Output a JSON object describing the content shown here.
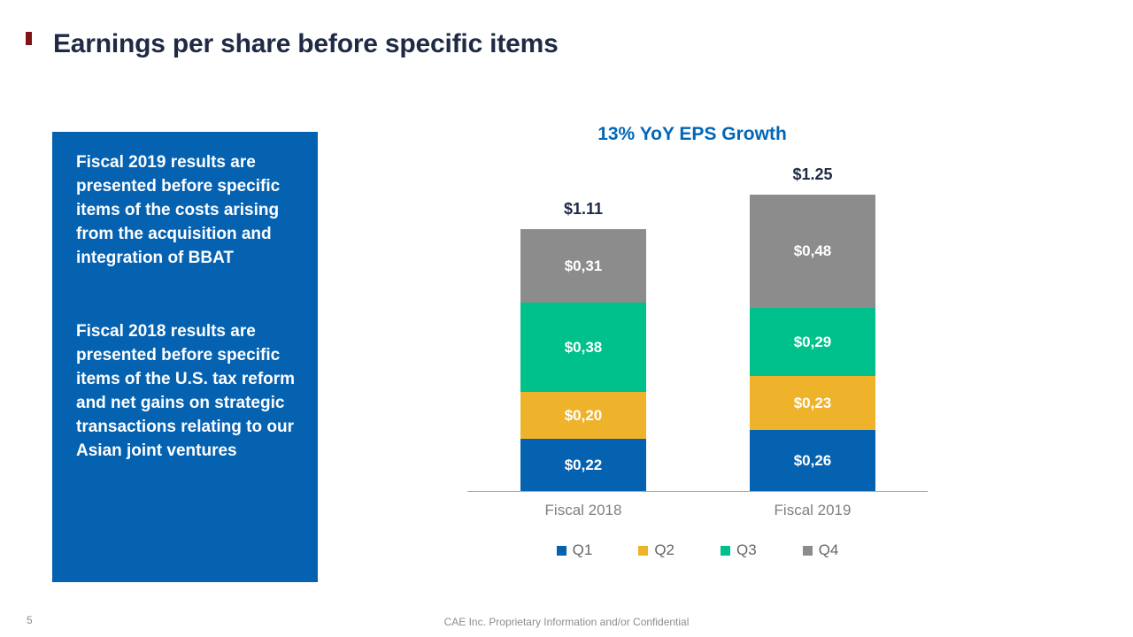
{
  "slide": {
    "title": "Earnings per share before specific items",
    "page_number": "5",
    "footer": "CAE Inc. Proprietary Information and/or Confidential"
  },
  "callout": {
    "paragraph1": "Fiscal 2019 results are presented before specific items of the costs arising from the acquisition and integration of BBAT",
    "paragraph2": "Fiscal 2018 results are presented before specific items of the U.S. tax reform and net gains on strategic transactions relating to our Asian joint ventures"
  },
  "chart_data": {
    "type": "bar",
    "stacked": true,
    "title": "13% YoY EPS Growth",
    "categories": [
      "Fiscal 2018",
      "Fiscal 2019"
    ],
    "series": [
      {
        "name": "Q1",
        "color": "#0562b1",
        "values": [
          0.22,
          0.26
        ],
        "labels": [
          "$0,22",
          "$0,26"
        ]
      },
      {
        "name": "Q2",
        "color": "#eeb32a",
        "values": [
          0.2,
          0.23
        ],
        "labels": [
          "$0,20",
          "$0,23"
        ]
      },
      {
        "name": "Q3",
        "color": "#00c18b",
        "values": [
          0.38,
          0.29
        ],
        "labels": [
          "$0,38",
          "$0,29"
        ]
      },
      {
        "name": "Q4",
        "color": "#8c8c8c",
        "values": [
          0.31,
          0.48
        ],
        "labels": [
          "$0,31",
          "$0,48"
        ]
      }
    ],
    "totals": [
      "$1.11",
      "$1.25"
    ],
    "ylim": [
      0,
      1.4
    ],
    "grid": false,
    "axis_ticks": "none",
    "legend_position": "bottom"
  },
  "colors": {
    "title_navy": "#1f2a44",
    "chart_title_blue": "#0067b9",
    "callout_background": "#0562b1",
    "red_accent": "#7e1418",
    "axis_gray": "#ababab",
    "category_label_gray": "#7f7f7f",
    "legend_text_gray": "#666666",
    "footer_gray": "#8c8c8c"
  }
}
